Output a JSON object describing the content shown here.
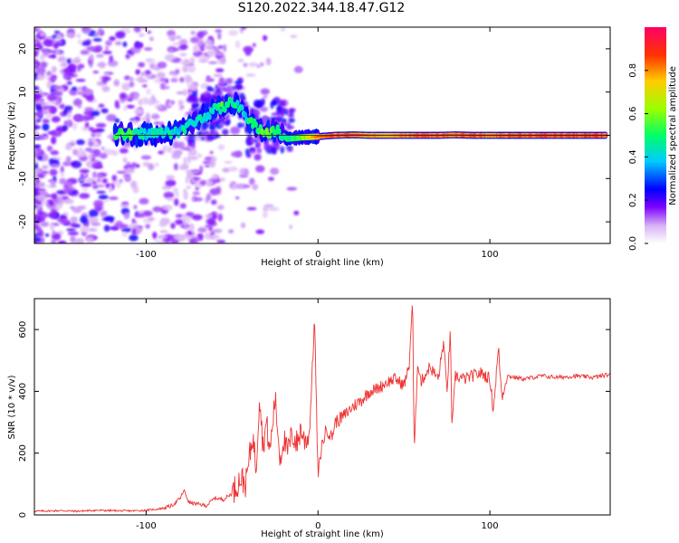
{
  "title": "S120.2022.344.18.47.G12",
  "chart_data": [
    {
      "type": "heatmap",
      "xlabel": "Height of straight line (km)",
      "ylabel": "Frequency (Hz)",
      "xlim": [
        -165,
        170
      ],
      "ylim": [
        -25,
        25
      ],
      "x_ticks": [
        "-100",
        "0",
        "100"
      ],
      "y_ticks": [
        "-20",
        "-10",
        "0",
        "10",
        "20"
      ],
      "colorbar": {
        "label": "Normalized spectral amplitude",
        "ticks": [
          "0.0",
          "0.2",
          "0.4",
          "0.6",
          "0.8"
        ],
        "range": [
          0,
          1
        ]
      },
      "ridge": {
        "description_free_points": [
          [
            -118,
            0.2,
            0.55
          ],
          [
            -110,
            0.0,
            0.6
          ],
          [
            -100,
            0.4,
            0.45
          ],
          [
            -90,
            0.5,
            0.5
          ],
          [
            -80,
            1.0,
            0.45
          ],
          [
            -70,
            3.5,
            0.5
          ],
          [
            -62,
            5.5,
            0.45
          ],
          [
            -55,
            6.5,
            0.55
          ],
          [
            -48,
            8.0,
            0.5
          ],
          [
            -42,
            4.0,
            0.45
          ],
          [
            -36,
            2.0,
            0.55
          ],
          [
            -30,
            0.5,
            0.6
          ],
          [
            -24,
            1.0,
            0.55
          ],
          [
            -18,
            -0.8,
            0.5
          ],
          [
            -10,
            -0.5,
            0.6
          ],
          [
            0,
            -0.3,
            0.8
          ],
          [
            10,
            0.0,
            0.85
          ],
          [
            20,
            0.1,
            0.85
          ],
          [
            30,
            0.0,
            0.8
          ],
          [
            40,
            0.0,
            0.75
          ],
          [
            50,
            0.0,
            0.8
          ],
          [
            60,
            0.0,
            0.85
          ],
          [
            70,
            0.0,
            0.85
          ],
          [
            80,
            0.1,
            0.8
          ],
          [
            90,
            0.0,
            0.85
          ],
          [
            100,
            0.0,
            0.8
          ],
          [
            110,
            0.0,
            0.85
          ],
          [
            120,
            0.0,
            0.85
          ],
          [
            130,
            0.0,
            0.85
          ],
          [
            140,
            0.0,
            0.85
          ],
          [
            150,
            0.0,
            0.85
          ],
          [
            160,
            0.0,
            0.85
          ],
          [
            168,
            0.0,
            0.85
          ]
        ]
      }
    },
    {
      "type": "line",
      "xlabel": "Height of straight line (km)",
      "ylabel": "SNR (10 * v/v)",
      "xlim": [
        -165,
        170
      ],
      "ylim": [
        0,
        700
      ],
      "x_ticks": [
        "-100",
        "0",
        "100"
      ],
      "y_ticks": [
        "0",
        "200",
        "400",
        "600"
      ],
      "series": [
        {
          "color": "#ee3333",
          "points": [
            [
              -165,
              12
            ],
            [
              -150,
              14
            ],
            [
              -140,
              12
            ],
            [
              -130,
              15
            ],
            [
              -120,
              14
            ],
            [
              -110,
              13
            ],
            [
              -100,
              15
            ],
            [
              -95,
              18
            ],
            [
              -90,
              22
            ],
            [
              -85,
              30
            ],
            [
              -80,
              55
            ],
            [
              -78,
              80
            ],
            [
              -75,
              40
            ],
            [
              -70,
              35
            ],
            [
              -65,
              30
            ],
            [
              -60,
              55
            ],
            [
              -55,
              50
            ],
            [
              -50,
              70
            ],
            [
              -45,
              120
            ],
            [
              -42,
              100
            ],
            [
              -40,
              180
            ],
            [
              -38,
              260
            ],
            [
              -36,
              150
            ],
            [
              -34,
              400
            ],
            [
              -32,
              220
            ],
            [
              -30,
              300
            ],
            [
              -28,
              200
            ],
            [
              -25,
              380
            ],
            [
              -22,
              180
            ],
            [
              -20,
              250
            ],
            [
              -18,
              200
            ],
            [
              -15,
              260
            ],
            [
              -12,
              230
            ],
            [
              -10,
              280
            ],
            [
              -8,
              240
            ],
            [
              -5,
              260
            ],
            [
              -2,
              640
            ],
            [
              0,
              120
            ],
            [
              2,
              220
            ],
            [
              5,
              280
            ],
            [
              8,
              250
            ],
            [
              10,
              300
            ],
            [
              15,
              320
            ],
            [
              20,
              350
            ],
            [
              25,
              370
            ],
            [
              30,
              400
            ],
            [
              35,
              410
            ],
            [
              40,
              430
            ],
            [
              45,
              440
            ],
            [
              50,
              420
            ],
            [
              53,
              480
            ],
            [
              55,
              700
            ],
            [
              56,
              190
            ],
            [
              58,
              500
            ],
            [
              60,
              430
            ],
            [
              65,
              480
            ],
            [
              70,
              440
            ],
            [
              73,
              560
            ],
            [
              75,
              400
            ],
            [
              77,
              590
            ],
            [
              78,
              280
            ],
            [
              80,
              450
            ],
            [
              85,
              440
            ],
            [
              90,
              450
            ],
            [
              95,
              460
            ],
            [
              100,
              440
            ],
            [
              102,
              340
            ],
            [
              105,
              540
            ],
            [
              107,
              380
            ],
            [
              110,
              450
            ],
            [
              120,
              440
            ],
            [
              130,
              450
            ],
            [
              140,
              445
            ],
            [
              150,
              450
            ],
            [
              160,
              445
            ],
            [
              170,
              455
            ]
          ]
        }
      ]
    }
  ]
}
